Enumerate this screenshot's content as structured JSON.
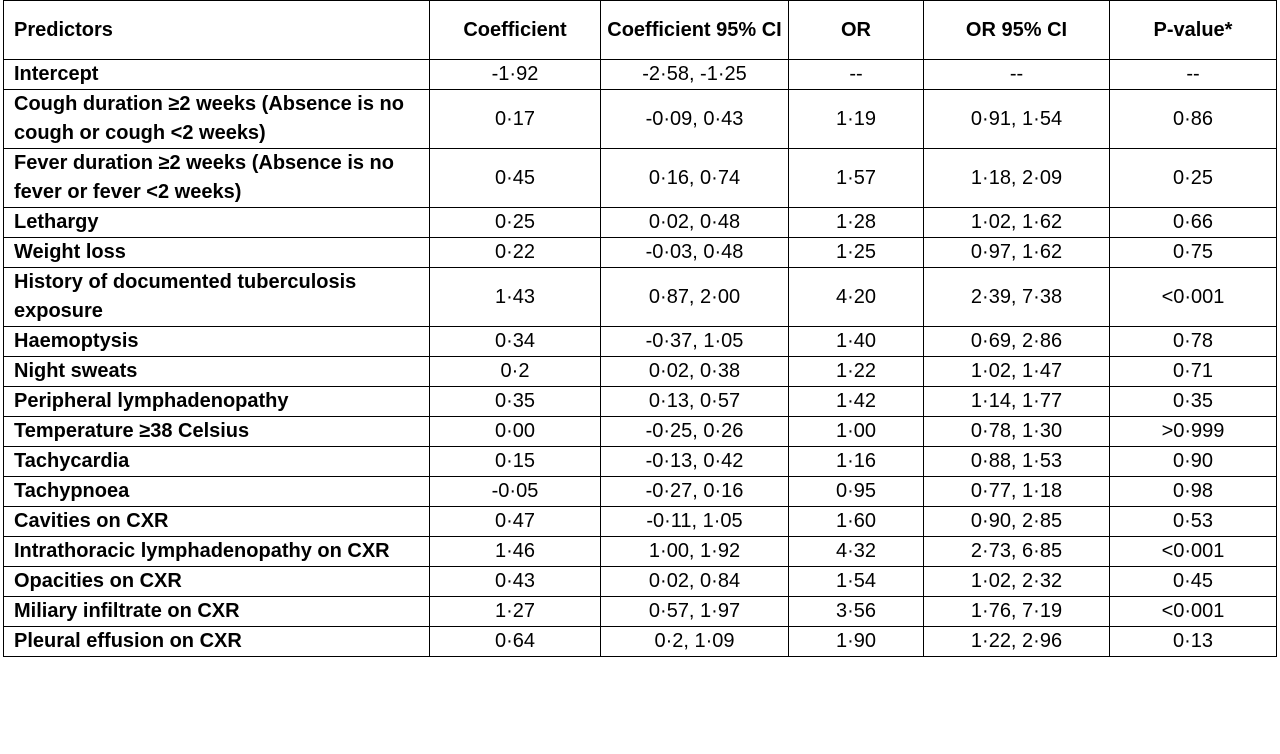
{
  "table": {
    "headers": [
      "Predictors",
      "Coefficient",
      "Coefficient 95% CI",
      "OR",
      "OR 95% CI",
      "P-value*"
    ],
    "rows": [
      [
        "Intercept",
        "-1·92",
        "-2·58, -1·25",
        "--",
        "--",
        "--"
      ],
      [
        "Cough duration ≥2 weeks (Absence is no cough or cough <2 weeks)",
        "0·17",
        "-0·09, 0·43",
        "1·19",
        "0·91, 1·54",
        "0·86"
      ],
      [
        "Fever duration ≥2 weeks (Absence is no fever or fever <2 weeks)",
        "0·45",
        "0·16, 0·74",
        "1·57",
        "1·18, 2·09",
        "0·25"
      ],
      [
        "Lethargy",
        "0·25",
        "0·02, 0·48",
        "1·28",
        "1·02, 1·62",
        "0·66"
      ],
      [
        "Weight loss",
        "0·22",
        "-0·03, 0·48",
        "1·25",
        "0·97, 1·62",
        "0·75"
      ],
      [
        "History of documented tuberculosis exposure",
        "1·43",
        "0·87, 2·00",
        "4·20",
        "2·39, 7·38",
        "<0·001"
      ],
      [
        "Haemoptysis",
        "0·34",
        "-0·37, 1·05",
        "1·40",
        "0·69, 2·86",
        "0·78"
      ],
      [
        "Night sweats",
        "0·2",
        "0·02, 0·38",
        "1·22",
        "1·02, 1·47",
        "0·71"
      ],
      [
        "Peripheral lymphadenopathy",
        "0·35",
        "0·13, 0·57",
        "1·42",
        "1·14, 1·77",
        "0·35"
      ],
      [
        "Temperature ≥38 Celsius",
        "0·00",
        "-0·25, 0·26",
        "1·00",
        "0·78, 1·30",
        ">0·999"
      ],
      [
        "Tachycardia",
        "0·15",
        "-0·13, 0·42",
        "1·16",
        "0·88, 1·53",
        "0·90"
      ],
      [
        "Tachypnoea",
        "-0·05",
        "-0·27, 0·16",
        "0·95",
        "0·77, 1·18",
        "0·98"
      ],
      [
        "Cavities on CXR",
        "0·47",
        "-0·11, 1·05",
        "1·60",
        "0·90, 2·85",
        "0·53"
      ],
      [
        "Intrathoracic lymphadenopathy on CXR",
        "1·46",
        "1·00, 1·92",
        "4·32",
        "2·73, 6·85",
        "<0·001"
      ],
      [
        "Opacities on CXR",
        "0·43",
        "0·02, 0·84",
        "1·54",
        "1·02, 2·32",
        "0·45"
      ],
      [
        "Miliary infiltrate on CXR",
        "1·27",
        "0·57, 1·97",
        "3·56",
        "1·76, 7·19",
        "<0·001"
      ],
      [
        "Pleural effusion on CXR",
        "0·64",
        "0·2, 1·09",
        "1·90",
        "1·22, 2·96",
        "0·13"
      ]
    ]
  }
}
